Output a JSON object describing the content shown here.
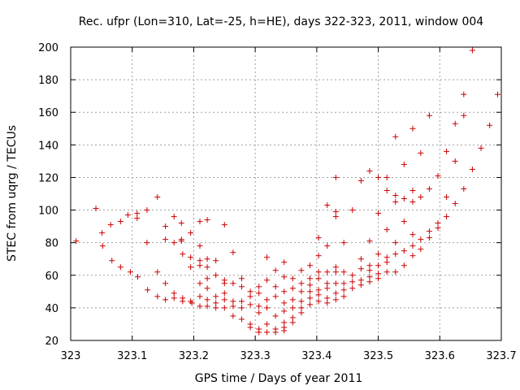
{
  "chart_data": {
    "type": "scatter",
    "title": "Rec. ufpr (Lon=310, Lat=-25, h=HE), days 322-323, 2011, window 004",
    "xlabel": "GPS time / Days of year 2011",
    "ylabel": "STEC from uqrg / TECUs",
    "xlim": [
      323,
      323.7
    ],
    "ylim": [
      20,
      200
    ],
    "xticks": [
      323,
      323.1,
      323.2,
      323.3,
      323.4,
      323.5,
      323.6,
      323.7
    ],
    "xtick_labels": [
      "323",
      "323.1",
      "323.2",
      "323.3",
      "323.4",
      "323.5",
      "323.6",
      "323.7"
    ],
    "yticks": [
      20,
      40,
      60,
      80,
      100,
      120,
      140,
      160,
      180,
      200
    ],
    "ytick_labels": [
      "20",
      "40",
      "60",
      "80",
      "100",
      "120",
      "140",
      "160",
      "180",
      "200"
    ],
    "grid": true,
    "marker": "+",
    "color": "#cc0000",
    "points": [
      [
        323.009,
        81
      ],
      [
        323.041,
        101
      ],
      [
        323.051,
        86
      ],
      [
        323.052,
        78
      ],
      [
        323.065,
        91
      ],
      [
        323.067,
        69
      ],
      [
        323.081,
        93
      ],
      [
        323.081,
        65
      ],
      [
        323.093,
        97
      ],
      [
        323.097,
        62
      ],
      [
        323.108,
        98
      ],
      [
        323.109,
        59
      ],
      [
        323.108,
        95
      ],
      [
        323.124,
        100
      ],
      [
        323.124,
        80
      ],
      [
        323.125,
        51
      ],
      [
        323.141,
        108
      ],
      [
        323.141,
        62
      ],
      [
        323.141,
        47
      ],
      [
        323.154,
        90
      ],
      [
        323.154,
        82
      ],
      [
        323.154,
        55
      ],
      [
        323.154,
        45
      ],
      [
        323.168,
        96
      ],
      [
        323.168,
        80
      ],
      [
        323.168,
        49
      ],
      [
        323.168,
        46
      ],
      [
        323.18,
        92
      ],
      [
        323.18,
        82
      ],
      [
        323.18,
        81
      ],
      [
        323.182,
        73
      ],
      [
        323.182,
        46
      ],
      [
        323.182,
        44
      ],
      [
        323.195,
        86
      ],
      [
        323.195,
        71
      ],
      [
        323.195,
        65
      ],
      [
        323.195,
        44
      ],
      [
        323.197,
        43
      ],
      [
        323.21,
        93
      ],
      [
        323.21,
        78
      ],
      [
        323.21,
        69
      ],
      [
        323.21,
        66
      ],
      [
        323.21,
        55
      ],
      [
        323.21,
        47
      ],
      [
        323.21,
        41
      ],
      [
        323.222,
        94
      ],
      [
        323.222,
        70
      ],
      [
        323.222,
        65
      ],
      [
        323.222,
        58
      ],
      [
        323.222,
        52
      ],
      [
        323.222,
        45
      ],
      [
        323.222,
        41
      ],
      [
        323.236,
        69
      ],
      [
        323.236,
        60
      ],
      [
        323.236,
        47
      ],
      [
        323.236,
        43
      ],
      [
        323.236,
        40
      ],
      [
        323.25,
        91
      ],
      [
        323.25,
        57
      ],
      [
        323.25,
        55
      ],
      [
        323.25,
        49
      ],
      [
        323.25,
        45
      ],
      [
        323.25,
        40
      ],
      [
        323.264,
        74
      ],
      [
        323.264,
        55
      ],
      [
        323.264,
        44
      ],
      [
        323.264,
        41
      ],
      [
        323.264,
        35
      ],
      [
        323.278,
        58
      ],
      [
        323.278,
        53
      ],
      [
        323.278,
        44
      ],
      [
        323.278,
        40
      ],
      [
        323.278,
        33
      ],
      [
        323.292,
        50
      ],
      [
        323.292,
        47
      ],
      [
        323.292,
        42
      ],
      [
        323.292,
        30
      ],
      [
        323.292,
        28
      ],
      [
        323.306,
        53
      ],
      [
        323.306,
        49
      ],
      [
        323.306,
        41
      ],
      [
        323.306,
        37
      ],
      [
        323.306,
        27
      ],
      [
        323.306,
        25
      ],
      [
        323.319,
        71
      ],
      [
        323.319,
        57
      ],
      [
        323.319,
        45
      ],
      [
        323.319,
        40
      ],
      [
        323.319,
        30
      ],
      [
        323.319,
        25
      ],
      [
        323.333,
        63
      ],
      [
        323.333,
        53
      ],
      [
        323.333,
        47
      ],
      [
        323.333,
        35
      ],
      [
        323.333,
        27
      ],
      [
        323.333,
        25
      ],
      [
        323.347,
        68
      ],
      [
        323.347,
        59
      ],
      [
        323.347,
        50
      ],
      [
        323.347,
        43
      ],
      [
        323.347,
        38
      ],
      [
        323.347,
        31
      ],
      [
        323.347,
        28
      ],
      [
        323.347,
        26
      ],
      [
        323.361,
        58
      ],
      [
        323.361,
        52
      ],
      [
        323.361,
        45
      ],
      [
        323.361,
        40
      ],
      [
        323.361,
        34
      ],
      [
        323.361,
        31
      ],
      [
        323.375,
        63
      ],
      [
        323.375,
        55
      ],
      [
        323.375,
        50
      ],
      [
        323.375,
        44
      ],
      [
        323.375,
        40
      ],
      [
        323.375,
        37
      ],
      [
        323.389,
        66
      ],
      [
        323.389,
        58
      ],
      [
        323.389,
        54
      ],
      [
        323.389,
        50
      ],
      [
        323.389,
        46
      ],
      [
        323.389,
        42
      ],
      [
        323.403,
        83
      ],
      [
        323.403,
        72
      ],
      [
        323.403,
        62
      ],
      [
        323.403,
        58
      ],
      [
        323.403,
        51
      ],
      [
        323.403,
        48
      ],
      [
        323.403,
        44
      ],
      [
        323.417,
        103
      ],
      [
        323.417,
        78
      ],
      [
        323.417,
        62
      ],
      [
        323.417,
        55
      ],
      [
        323.417,
        52
      ],
      [
        323.417,
        46
      ],
      [
        323.417,
        43
      ],
      [
        323.431,
        120
      ],
      [
        323.431,
        99
      ],
      [
        323.431,
        96
      ],
      [
        323.431,
        65
      ],
      [
        323.431,
        62
      ],
      [
        323.431,
        55
      ],
      [
        323.431,
        49
      ],
      [
        323.431,
        45
      ],
      [
        323.444,
        80
      ],
      [
        323.444,
        62
      ],
      [
        323.444,
        55
      ],
      [
        323.444,
        51
      ],
      [
        323.444,
        47
      ],
      [
        323.458,
        100
      ],
      [
        323.458,
        60
      ],
      [
        323.458,
        56
      ],
      [
        323.458,
        52
      ],
      [
        323.472,
        118
      ],
      [
        323.472,
        70
      ],
      [
        323.472,
        64
      ],
      [
        323.472,
        57
      ],
      [
        323.472,
        54
      ],
      [
        323.486,
        124
      ],
      [
        323.486,
        81
      ],
      [
        323.486,
        66
      ],
      [
        323.486,
        63
      ],
      [
        323.486,
        59
      ],
      [
        323.486,
        56
      ],
      [
        323.5,
        120
      ],
      [
        323.5,
        98
      ],
      [
        323.5,
        73
      ],
      [
        323.5,
        66
      ],
      [
        323.5,
        61
      ],
      [
        323.5,
        58
      ],
      [
        323.514,
        120
      ],
      [
        323.514,
        112
      ],
      [
        323.514,
        88
      ],
      [
        323.514,
        71
      ],
      [
        323.514,
        68
      ],
      [
        323.514,
        62
      ],
      [
        323.528,
        145
      ],
      [
        323.528,
        109
      ],
      [
        323.528,
        105
      ],
      [
        323.528,
        80
      ],
      [
        323.528,
        73
      ],
      [
        323.528,
        62
      ],
      [
        323.542,
        128
      ],
      [
        323.542,
        107
      ],
      [
        323.542,
        93
      ],
      [
        323.542,
        75
      ],
      [
        323.542,
        66
      ],
      [
        323.556,
        150
      ],
      [
        323.556,
        112
      ],
      [
        323.556,
        105
      ],
      [
        323.556,
        85
      ],
      [
        323.556,
        78
      ],
      [
        323.556,
        72
      ],
      [
        323.569,
        135
      ],
      [
        323.569,
        108
      ],
      [
        323.569,
        82
      ],
      [
        323.569,
        76
      ],
      [
        323.583,
        158
      ],
      [
        323.583,
        113
      ],
      [
        323.583,
        87
      ],
      [
        323.583,
        83
      ],
      [
        323.597,
        121
      ],
      [
        323.597,
        92
      ],
      [
        323.597,
        89
      ],
      [
        323.611,
        136
      ],
      [
        323.611,
        108
      ],
      [
        323.611,
        96
      ],
      [
        323.625,
        153
      ],
      [
        323.625,
        130
      ],
      [
        323.625,
        104
      ],
      [
        323.639,
        171
      ],
      [
        323.639,
        158
      ],
      [
        323.639,
        113
      ],
      [
        323.653,
        198
      ],
      [
        323.653,
        125
      ],
      [
        323.667,
        138
      ],
      [
        323.681,
        152
      ],
      [
        323.694,
        171
      ]
    ]
  }
}
